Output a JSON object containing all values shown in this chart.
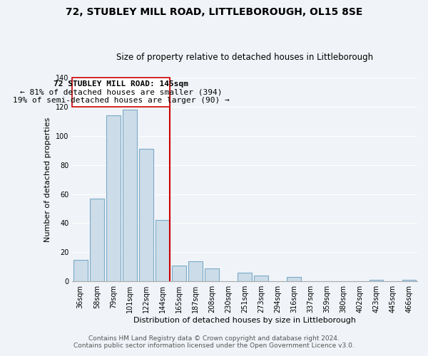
{
  "title": "72, STUBLEY MILL ROAD, LITTLEBOROUGH, OL15 8SE",
  "subtitle": "Size of property relative to detached houses in Littleborough",
  "xlabel": "Distribution of detached houses by size in Littleborough",
  "ylabel": "Number of detached properties",
  "footnote1": "Contains HM Land Registry data © Crown copyright and database right 2024.",
  "footnote2": "Contains public sector information licensed under the Open Government Licence v3.0.",
  "bar_labels": [
    "36sqm",
    "58sqm",
    "79sqm",
    "101sqm",
    "122sqm",
    "144sqm",
    "165sqm",
    "187sqm",
    "208sqm",
    "230sqm",
    "251sqm",
    "273sqm",
    "294sqm",
    "316sqm",
    "337sqm",
    "359sqm",
    "380sqm",
    "402sqm",
    "423sqm",
    "445sqm",
    "466sqm"
  ],
  "bar_values": [
    15,
    57,
    114,
    118,
    91,
    42,
    11,
    14,
    9,
    0,
    6,
    4,
    0,
    3,
    0,
    0,
    0,
    0,
    1,
    0,
    1
  ],
  "bar_color": "#ccdce8",
  "bar_edge_color": "#7aaac8",
  "highlight_bar_index": 5,
  "highlight_line_color": "#cc0000",
  "ylim": [
    0,
    140
  ],
  "yticks": [
    0,
    20,
    40,
    60,
    80,
    100,
    120,
    140
  ],
  "annotation_text_line1": "72 STUBLEY MILL ROAD: 145sqm",
  "annotation_text_line2": "← 81% of detached houses are smaller (394)",
  "annotation_text_line3": "19% of semi-detached houses are larger (90) →",
  "annotation_box_color": "#ffffff",
  "annotation_box_edge": "#cc0000",
  "background_color": "#f0f4f8",
  "grid_color": "#ffffff",
  "title_fontsize": 10,
  "subtitle_fontsize": 8.5,
  "xlabel_fontsize": 8,
  "ylabel_fontsize": 8,
  "tick_fontsize": 7,
  "annotation_fontsize": 8,
  "footnote_fontsize": 6.5
}
